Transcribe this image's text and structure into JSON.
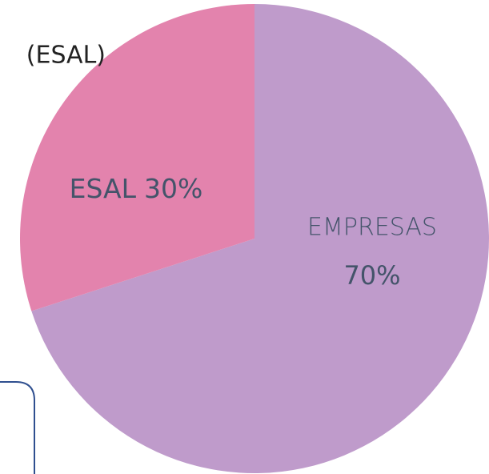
{
  "chart_data": {
    "type": "pie",
    "annotations": [
      "(ESAL)"
    ],
    "categories": [
      "EMPRESAS",
      "ESAL"
    ],
    "values": [
      70,
      30
    ],
    "value_labels": [
      "70%",
      "30%"
    ],
    "colors": [
      "#bf9bcb",
      "#e383ad"
    ]
  }
}
